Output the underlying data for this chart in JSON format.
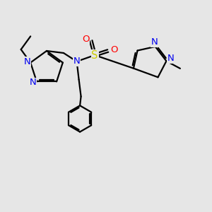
{
  "background_color": "#e6e6e6",
  "bond_color": "#000000",
  "n_color": "#0000ee",
  "o_color": "#ff0000",
  "s_color": "#cccc00",
  "figsize": [
    3.0,
    3.0
  ],
  "dpi": 100,
  "xlim": [
    0,
    10
  ],
  "ylim": [
    0,
    10
  ],
  "lw": 1.6,
  "fs": 9.5
}
